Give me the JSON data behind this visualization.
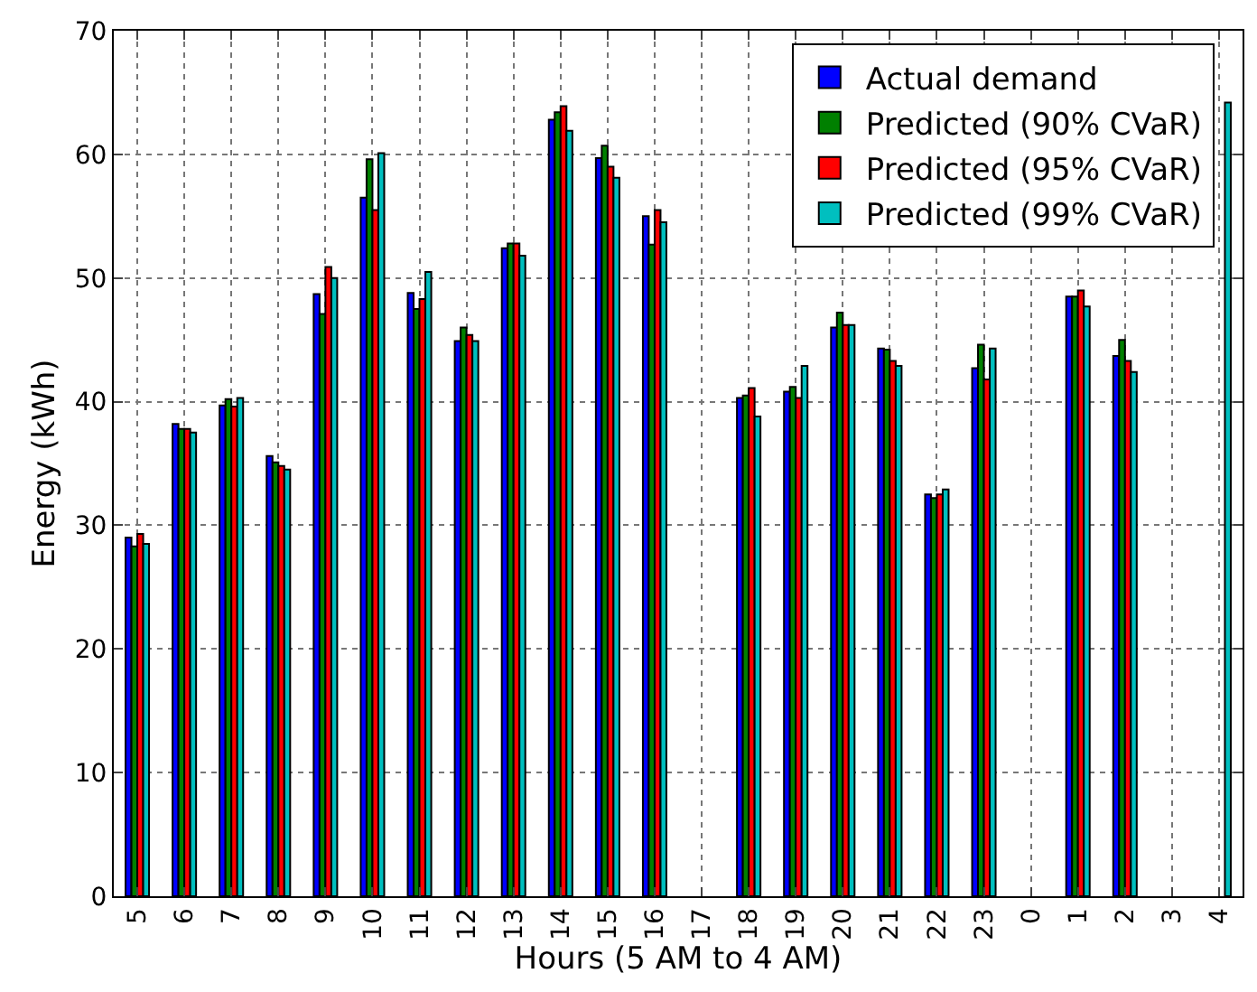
{
  "chart_data": {
    "type": "bar",
    "xlabel": "Hours (5 AM to 4 AM)",
    "ylabel": "Energy (kWh)",
    "categories": [
      "5",
      "6",
      "7",
      "8",
      "9",
      "10",
      "11",
      "12",
      "13",
      "14",
      "15",
      "16",
      "17",
      "18",
      "19",
      "20",
      "21",
      "22",
      "23",
      "0",
      "1",
      "2",
      "3",
      "4"
    ],
    "series": [
      {
        "name": "Actual demand",
        "color": "#0000ff",
        "values": [
          29.0,
          38.2,
          39.7,
          35.6,
          48.7,
          56.5,
          48.8,
          44.9,
          52.4,
          62.8,
          59.7,
          55.0,
          null,
          40.3,
          40.8,
          46.0,
          44.3,
          32.5,
          42.7,
          null,
          48.5,
          43.7,
          null,
          null
        ]
      },
      {
        "name": "Predicted (90% CVaR)",
        "color": "#008000",
        "values": [
          28.3,
          37.8,
          40.2,
          35.1,
          47.1,
          59.6,
          47.5,
          46.0,
          52.8,
          63.4,
          60.7,
          52.7,
          null,
          40.5,
          41.2,
          47.2,
          44.2,
          32.2,
          44.6,
          null,
          48.5,
          45.0,
          null,
          null
        ]
      },
      {
        "name": "Predicted (95% CVaR)",
        "color": "#ff0000",
        "values": [
          29.3,
          37.8,
          39.6,
          34.8,
          50.9,
          55.5,
          48.3,
          45.4,
          52.8,
          63.9,
          59.0,
          55.5,
          null,
          41.1,
          40.3,
          46.2,
          43.3,
          32.5,
          41.8,
          null,
          49.0,
          43.3,
          null,
          null
        ]
      },
      {
        "name": "Predicted (99% CVaR)",
        "color": "#00bfbf",
        "values": [
          28.5,
          37.5,
          40.3,
          34.5,
          50.0,
          60.1,
          50.5,
          44.9,
          51.8,
          61.9,
          58.1,
          54.5,
          null,
          38.8,
          42.9,
          46.2,
          42.9,
          32.9,
          44.3,
          null,
          47.7,
          42.4,
          null,
          64.2
        ]
      }
    ],
    "ylim": [
      0,
      70
    ],
    "yticks": [
      0,
      10,
      20,
      30,
      40,
      50,
      60,
      70
    ],
    "grid": true,
    "legend": "top right"
  }
}
